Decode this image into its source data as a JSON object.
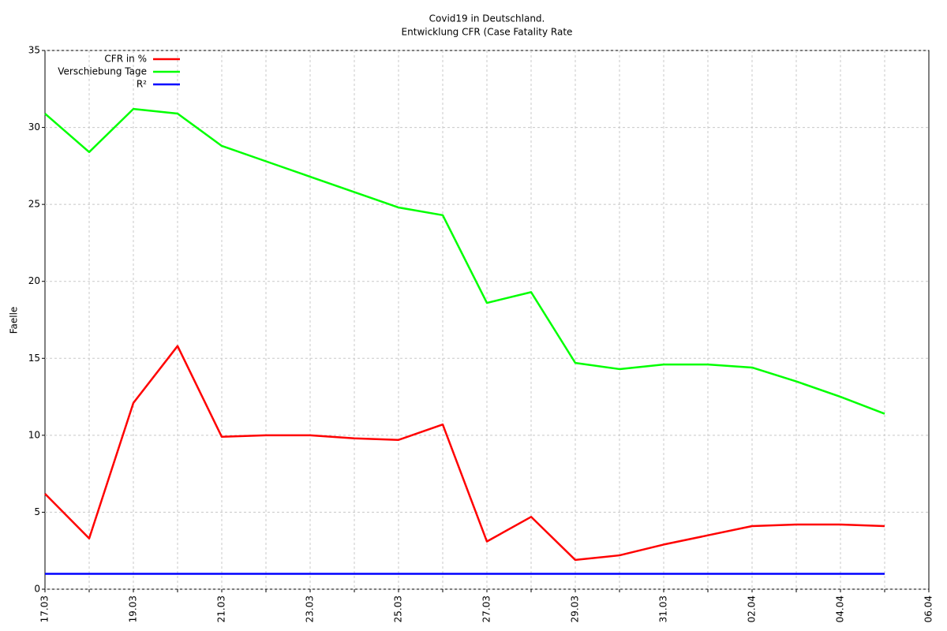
{
  "chart_data": {
    "type": "line",
    "title": "Covid19 in Deutschland.",
    "subtitle": "Entwicklung CFR (Case Fatality Rate",
    "y_label": "Faelle",
    "categories": [
      "17.03",
      null,
      "19.03",
      null,
      "21.03",
      null,
      "23.03",
      null,
      "25.03",
      null,
      "27.03",
      null,
      "29.03",
      null,
      "31.03",
      null,
      "02.04",
      null,
      "04.04",
      null,
      "06.04"
    ],
    "series": [
      {
        "name": "CFR in %",
        "color": "#ff0000",
        "values": [
          6.2,
          3.3,
          12.1,
          15.8,
          9.9,
          10.0,
          10.0,
          9.8,
          9.7,
          10.7,
          3.1,
          4.7,
          1.9,
          2.2,
          2.9,
          3.5,
          4.1,
          4.2,
          4.2,
          4.1,
          null
        ]
      },
      {
        "name": "Verschiebung Tage",
        "color": "#00ff00",
        "values": [
          30.9,
          28.4,
          31.2,
          30.9,
          28.8,
          27.8,
          26.8,
          25.8,
          24.8,
          24.3,
          18.6,
          19.3,
          14.7,
          14.3,
          14.6,
          14.6,
          14.4,
          13.5,
          12.5,
          11.4,
          null
        ]
      },
      {
        "name": "R²",
        "color": "#0000ff",
        "values": [
          1,
          1,
          1,
          1,
          1,
          1,
          1,
          1,
          1,
          1,
          1,
          1,
          1,
          1,
          1,
          1,
          1,
          1,
          1,
          1,
          null
        ]
      }
    ],
    "ylim": [
      0,
      35
    ],
    "yticks": [
      0,
      5,
      10,
      15,
      20,
      25,
      30,
      35
    ],
    "grid": true,
    "legend": "top-left"
  }
}
